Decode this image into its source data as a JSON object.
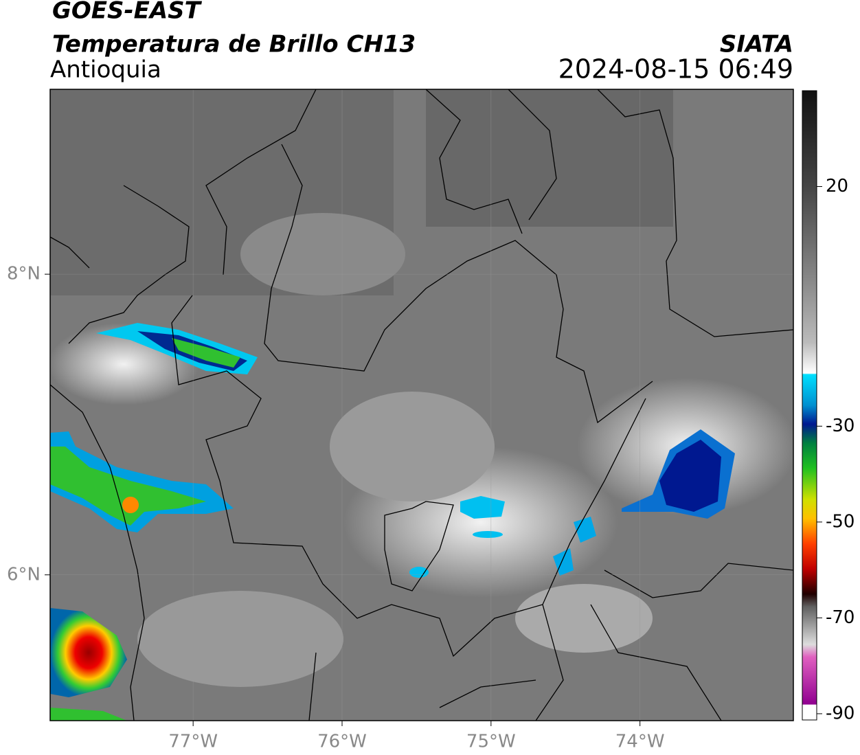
{
  "header": {
    "title": "GOES-EAST",
    "subtitle": "Temperatura de Brillo CH13",
    "region": "Antioquia",
    "source": "SIATA",
    "datetime": "2024-08-15 06:49"
  },
  "map": {
    "xlim": [
      -77.96,
      -72.97
    ],
    "ylim": [
      5.03,
      9.23
    ],
    "xticks": [
      {
        "value": -77,
        "label": "77°W"
      },
      {
        "value": -76,
        "label": "76°W"
      },
      {
        "value": -75,
        "label": "75°W"
      },
      {
        "value": -74,
        "label": "74°W"
      }
    ],
    "yticks": [
      {
        "value": 6,
        "label": "6°N"
      },
      {
        "value": 8,
        "label": "8°N"
      }
    ],
    "grid": true
  },
  "colorbar": {
    "lim": [
      -91.3,
      40
    ],
    "ticks": [
      20,
      -30,
      -50,
      -70,
      -90
    ]
  }
}
